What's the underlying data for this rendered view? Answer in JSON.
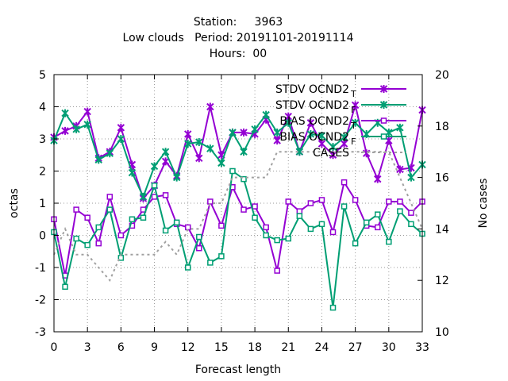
{
  "chart_data": {
    "type": "line",
    "title_lines": [
      "Station:     3963",
      "Low clouds   Period: 20191101-20191114",
      "Hours:  00"
    ],
    "xlabel": "Forecast length",
    "ylabel": "octas",
    "y2label": "No cases",
    "xlim": [
      0,
      33
    ],
    "ylim": [
      -3,
      5
    ],
    "y2lim": [
      10,
      20
    ],
    "xticks": [
      0,
      3,
      6,
      9,
      12,
      15,
      18,
      21,
      24,
      27,
      30,
      33
    ],
    "yticks": [
      -3,
      -2,
      -1,
      0,
      1,
      2,
      3,
      4,
      5
    ],
    "y2ticks": [
      10,
      12,
      14,
      16,
      18,
      20
    ],
    "grid": true,
    "legend_position": "top-right",
    "x": [
      0,
      1,
      2,
      3,
      4,
      5,
      6,
      7,
      8,
      9,
      10,
      11,
      12,
      13,
      14,
      15,
      16,
      17,
      18,
      19,
      20,
      21,
      22,
      23,
      24,
      25,
      26,
      27,
      28,
      29,
      30,
      31,
      32,
      33
    ],
    "series": [
      {
        "name": "STDV OCND2",
        "name_sub": "T",
        "color": "#9400d3",
        "marker": "star",
        "axis": "y1",
        "values": [
          3.05,
          3.25,
          3.4,
          3.85,
          2.4,
          2.6,
          3.35,
          2.2,
          1.15,
          1.55,
          2.3,
          1.85,
          3.15,
          2.4,
          4.0,
          2.5,
          3.2,
          3.2,
          3.15,
          3.6,
          2.95,
          3.7,
          2.6,
          3.5,
          2.85,
          2.5,
          2.85,
          4.05,
          2.55,
          1.75,
          2.95,
          2.05,
          2.1,
          3.9
        ]
      },
      {
        "name": "STDV OCND2",
        "name_sub": "F",
        "color": "#009e73",
        "marker": "star",
        "axis": "y1",
        "values": [
          2.95,
          3.8,
          3.3,
          3.45,
          2.35,
          2.55,
          3.0,
          1.95,
          1.2,
          2.15,
          2.6,
          1.8,
          2.85,
          2.9,
          2.7,
          2.25,
          3.2,
          2.6,
          3.3,
          3.75,
          3.2,
          3.5,
          2.6,
          3.15,
          3.1,
          2.75,
          3.05,
          3.5,
          3.15,
          3.5,
          3.2,
          3.35,
          1.8,
          2.2
        ]
      },
      {
        "name": "BIAS OCND2",
        "name_sub": "T",
        "color": "#9400d3",
        "marker": "square",
        "axis": "y1",
        "values": [
          0.5,
          -1.25,
          0.8,
          0.55,
          -0.25,
          1.2,
          0.0,
          0.3,
          0.8,
          1.2,
          1.25,
          0.35,
          0.25,
          -0.4,
          1.05,
          0.3,
          1.5,
          0.8,
          0.9,
          0.25,
          -1.1,
          1.05,
          0.75,
          1.0,
          1.1,
          0.1,
          1.65,
          1.1,
          0.3,
          0.25,
          1.05,
          1.05,
          0.7,
          1.05
        ]
      },
      {
        "name": "BIAS OCND2",
        "name_sub": "F",
        "color": "#009e73",
        "marker": "square",
        "axis": "y1",
        "values": [
          0.1,
          -1.6,
          -0.1,
          -0.3,
          0.25,
          0.8,
          -0.7,
          0.5,
          0.55,
          1.55,
          0.15,
          0.4,
          -1.0,
          -0.05,
          -0.85,
          -0.65,
          2.0,
          1.75,
          0.55,
          0.0,
          -0.15,
          -0.1,
          0.6,
          0.2,
          0.35,
          -2.25,
          0.9,
          -0.25,
          0.4,
          0.65,
          -0.2,
          0.75,
          0.35,
          0.05
        ]
      },
      {
        "name": "CASES",
        "name_sub": "",
        "color": "#a0a0a0",
        "marker": "none",
        "dashed": true,
        "axis": "y2",
        "values": [
          13,
          14,
          13,
          13,
          12.5,
          12,
          13,
          13,
          13,
          13,
          13.5,
          13,
          14,
          14,
          15,
          15,
          16,
          16,
          16,
          16,
          17,
          17,
          17,
          17,
          17,
          17,
          17,
          17,
          17,
          17,
          17,
          16,
          15,
          14
        ]
      }
    ]
  }
}
